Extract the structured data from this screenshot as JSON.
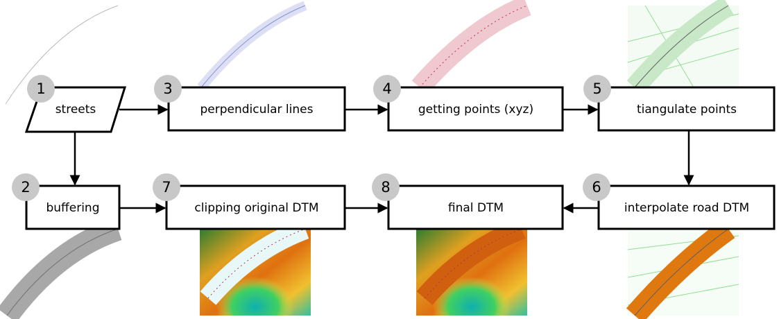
{
  "nodes": [
    {
      "number": "1",
      "label": "streets"
    },
    {
      "number": "2",
      "label": "buffering"
    },
    {
      "number": "3",
      "label": "perpendicular lines"
    },
    {
      "number": "4",
      "label": "getting points (xyz)"
    },
    {
      "number": "5",
      "label": "tiangulate points"
    },
    {
      "number": "6",
      "label": "interpolate road DTM"
    },
    {
      "number": "7",
      "label": "clipping original DTM"
    },
    {
      "number": "8",
      "label": "final DTM"
    }
  ]
}
